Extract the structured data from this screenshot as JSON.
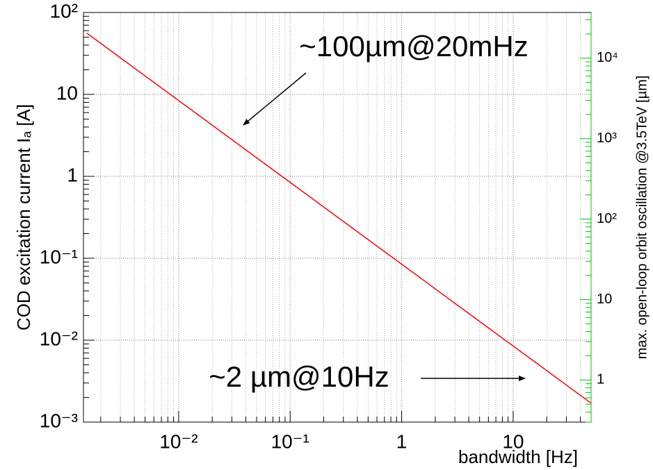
{
  "chart_data": {
    "type": "line",
    "xlabel": "bandwidth [Hz]",
    "ylabel": "COD excitation current Iₐ [A]",
    "y2label": "max. open-loop orbit oscillation @3.5TeV [µm]",
    "x": [
      0.0015,
      50
    ],
    "series": [
      {
        "name": "COD excitation current",
        "color": "#ff0000",
        "x": [
          0.0015,
          50
        ],
        "values": [
          56,
          0.0017
        ]
      }
    ],
    "xscale": "log",
    "yscale": "log",
    "y2scale": "log",
    "xlim": [
      0.0014,
      50
    ],
    "ylim": [
      0.001,
      100
    ],
    "y2lim": [
      0.3,
      37000
    ],
    "xticks": [
      {
        "value": 0.01,
        "label": "10⁻²"
      },
      {
        "value": 0.1,
        "label": "10⁻¹"
      },
      1,
      10
    ],
    "yticks": [
      {
        "value": 0.001,
        "label": "10⁻³"
      },
      {
        "value": 0.01,
        "label": "10⁻²"
      },
      {
        "value": 0.1,
        "label": "10⁻¹"
      },
      1,
      10,
      {
        "value": 100,
        "label": "10²"
      }
    ],
    "y2ticks": [
      1,
      10,
      {
        "value": 100,
        "label": "10²"
      },
      {
        "value": 1000,
        "label": "10³"
      },
      {
        "value": 10000,
        "label": "10⁴"
      }
    ],
    "y2color": "#00c000",
    "grid": true,
    "minor_grid": true,
    "annotations": [
      {
        "text": "~100µm@20mHz"
      },
      {
        "text": "~2 µm@10Hz"
      }
    ]
  }
}
